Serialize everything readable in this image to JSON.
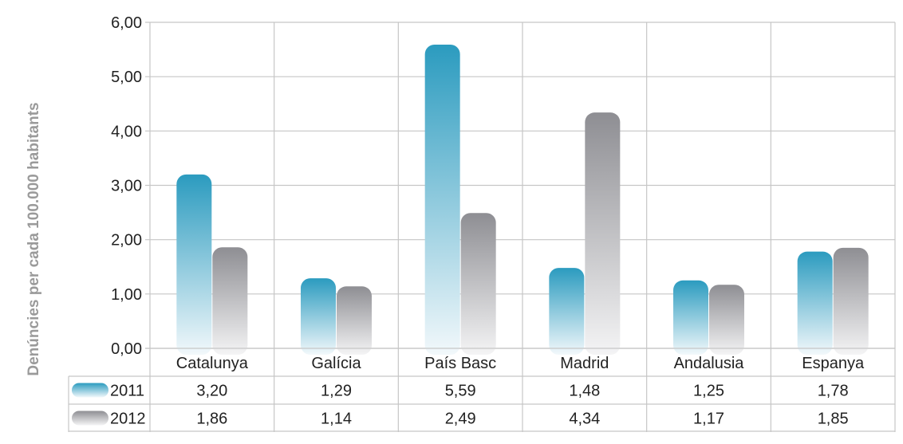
{
  "chart_data": {
    "type": "bar",
    "ylabel": "Denúncies per cada 100.000 habitants",
    "categories": [
      "Catalunya",
      "Galícia",
      "País Basc",
      "Madrid",
      "Andalusia",
      "Espanya"
    ],
    "ylim": [
      0,
      6
    ],
    "yticks": [
      "0,00",
      "1,00",
      "2,00",
      "3,00",
      "4,00",
      "5,00",
      "6,00"
    ],
    "grid": true,
    "series": [
      {
        "name": "2011",
        "values": [
          3.2,
          1.29,
          5.59,
          1.48,
          1.25,
          1.78
        ],
        "labels": [
          "3,20",
          "1,29",
          "5,59",
          "1,48",
          "1,25",
          "1,78"
        ],
        "color": "#2b9bbf"
      },
      {
        "name": "2012",
        "values": [
          1.86,
          1.14,
          2.49,
          4.34,
          1.17,
          1.85
        ],
        "labels": [
          "1,86",
          "1,14",
          "2,49",
          "4,34",
          "1,17",
          "1,85"
        ],
        "color": "#8e8e93"
      }
    ],
    "legend": "data-table-left"
  }
}
